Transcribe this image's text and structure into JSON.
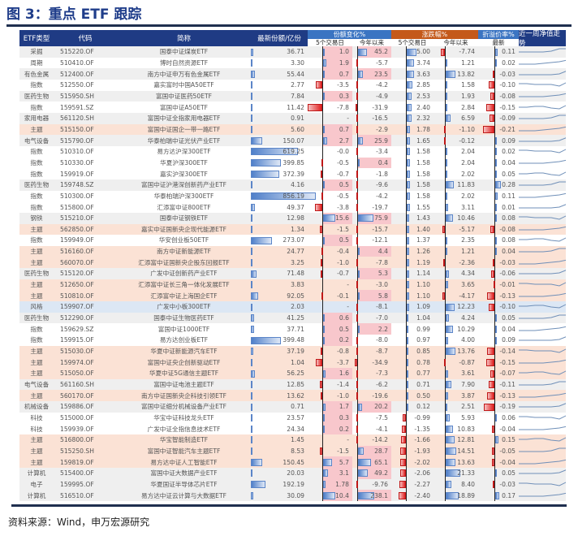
{
  "title": "图 3：重点 ETF 跟踪",
  "source": "资料来源：Wind，申万宏源研究",
  "colors": {
    "header": "#1f3b84",
    "group_share": "#3a74c2",
    "group_return": "#c4591a",
    "group_premium": "#3a74c2",
    "row_grey": "#efefef",
    "row_orange": "#fbe2d5",
    "row_blue": "#dce7f4",
    "row_white": "#ffffff",
    "bar_positive": "#4f7fc9",
    "bar_negative": "#e02020",
    "highlight_pink": "#f8c7cc"
  },
  "header": {
    "type": "ETF类型",
    "code": "代码",
    "name": "简称",
    "shares": "最新份额/亿份",
    "share_change": "份额变化%",
    "return": "涨跌幅%",
    "premium": "折溢价率%",
    "trend": "近一周净值走势",
    "d5": "5个交易日",
    "ytd": "今年以来",
    "d5b": "5个交易日",
    "ytdb": "今年以来",
    "latest": "最新"
  },
  "rows": [
    {
      "type": "采掘",
      "code": "515220.OF",
      "name": "国泰中证煤炭ETF",
      "shares": "36.71",
      "c5": "1.0",
      "cy": "45.2",
      "r5": "5.00",
      "ry": "-7.74",
      "pr": "0.11",
      "bg": "grey"
    },
    {
      "type": "周期",
      "code": "510410.OF",
      "name": "博时自然资源ETF",
      "shares": "3.30",
      "c5": "1.9",
      "cy": "-5.7",
      "r5": "3.74",
      "ry": "1.21",
      "pr": "0.02",
      "bg": "white"
    },
    {
      "type": "有色金属",
      "code": "512400.OF",
      "name": "南方中证申万有色金属ETF",
      "shares": "55.44",
      "c5": "0.7",
      "cy": "23.5",
      "r5": "3.63",
      "ry": "13.82",
      "pr": "-0.03",
      "bg": "grey"
    },
    {
      "type": "指数",
      "code": "512550.OF",
      "name": "嘉实富时中国A50ETF",
      "shares": "2.77",
      "c5": "-3.5",
      "cy": "-4.2",
      "r5": "2.85",
      "ry": "1.58",
      "pr": "-0.10",
      "bg": "white"
    },
    {
      "type": "医药生物",
      "code": "515950.SH",
      "name": "富国中证医药50ETF",
      "shares": "7.84",
      "c5": "0.3",
      "cy": "-4.9",
      "r5": "2.53",
      "ry": "1.93",
      "pr": "-0.08",
      "bg": "grey"
    },
    {
      "type": "指数",
      "code": "159591.SZ",
      "name": "富国中证A50ETF",
      "shares": "11.42",
      "c5": "-7.8",
      "cy": "-31.9",
      "r5": "2.40",
      "ry": "2.84",
      "pr": "-0.15",
      "bg": "white"
    },
    {
      "type": "家用电器",
      "code": "561120.SH",
      "name": "富国中证全指家用电器ETF",
      "shares": "0.91",
      "c5": "-",
      "cy": "-16.5",
      "r5": "2.32",
      "ry": "6.59",
      "pr": "-0.09",
      "bg": "grey"
    },
    {
      "type": "主题",
      "code": "515150.OF",
      "name": "富国中证国企一带一路ETF",
      "shares": "5.60",
      "c5": "0.7",
      "cy": "-2.9",
      "r5": "1.78",
      "ry": "-1.10",
      "pr": "-0.21",
      "bg": "orange"
    },
    {
      "type": "电气设备",
      "code": "515790.OF",
      "name": "华泰柏瑞中证光伏产业ETF",
      "shares": "150.07",
      "c5": "2.7",
      "cy": "25.9",
      "r5": "1.65",
      "ry": "-0.12",
      "pr": "0.09",
      "bg": "grey"
    },
    {
      "type": "指数",
      "code": "510310.OF",
      "name": "易方达沪深300ETF",
      "shares": "619.25",
      "c5": "-0.0",
      "cy": "-3.4",
      "r5": "1.58",
      "ry": "2.04",
      "pr": "0.02",
      "bg": "white"
    },
    {
      "type": "指数",
      "code": "510330.OF",
      "name": "华夏沪深300ETF",
      "shares": "399.85",
      "c5": "-0.5",
      "cy": "0.4",
      "r5": "1.58",
      "ry": "2.04",
      "pr": "0.04",
      "bg": "white"
    },
    {
      "type": "指数",
      "code": "159919.OF",
      "name": "嘉实沪深300ETF",
      "shares": "372.39",
      "c5": "-0.7",
      "cy": "-1.8",
      "r5": "1.58",
      "ry": "2.02",
      "pr": "0.05",
      "bg": "white"
    },
    {
      "type": "医药生物",
      "code": "159748.SZ",
      "name": "富国中证沪港深创新药产业ETF",
      "shares": "4.16",
      "c5": "0.5",
      "cy": "-9.6",
      "r5": "1.58",
      "ry": "11.83",
      "pr": "0.28",
      "bg": "grey"
    },
    {
      "type": "指数",
      "code": "510300.OF",
      "name": "华泰柏瑞沪深300ETF",
      "shares": "856.19",
      "c5": "-0.5",
      "cy": "-4.2",
      "r5": "1.58",
      "ry": "2.02",
      "pr": "0.11",
      "bg": "white"
    },
    {
      "type": "指数",
      "code": "515800.OF",
      "name": "汇添富中证800ETF",
      "shares": "49.37",
      "c5": "-3.8",
      "cy": "-19.7",
      "r5": "1.55",
      "ry": "3.11",
      "pr": "0.01",
      "bg": "white"
    },
    {
      "type": "钢铁",
      "code": "515210.OF",
      "name": "国泰中证钢铁ETF",
      "shares": "12.98",
      "c5": "15.6",
      "cy": "75.9",
      "r5": "1.43",
      "ry": "10.46",
      "pr": "0.08",
      "bg": "grey"
    },
    {
      "type": "主题",
      "code": "562850.OF",
      "name": "嘉实中证国新央企现代能源ETF",
      "shares": "1.34",
      "c5": "-1.5",
      "cy": "-15.7",
      "r5": "1.40",
      "ry": "-5.17",
      "pr": "-0.08",
      "bg": "orange"
    },
    {
      "type": "指数",
      "code": "159949.OF",
      "name": "华安创业板50ETF",
      "shares": "273.07",
      "c5": "0.5",
      "cy": "-12.1",
      "r5": "1.37",
      "ry": "2.35",
      "pr": "0.08",
      "bg": "white"
    },
    {
      "type": "主题",
      "code": "516160.OF",
      "name": "南方中证新能源ETF",
      "shares": "24.77",
      "c5": "-0.4",
      "cy": "4.4",
      "r5": "1.26",
      "ry": "1.21",
      "pr": "0.04",
      "bg": "orange"
    },
    {
      "type": "主题",
      "code": "560070.OF",
      "name": "汇添富中证国新央企股东回报ETF",
      "shares": "3.25",
      "c5": "-1.0",
      "cy": "-7.8",
      "r5": "1.19",
      "ry": "-2.36",
      "pr": "-0.03",
      "bg": "orange"
    },
    {
      "type": "医药生物",
      "code": "515120.OF",
      "name": "广发中证创新药产业ETF",
      "shares": "71.48",
      "c5": "-0.7",
      "cy": "5.3",
      "r5": "1.14",
      "ry": "4.34",
      "pr": "-0.06",
      "bg": "grey"
    },
    {
      "type": "主题",
      "code": "512650.OF",
      "name": "汇添富中证长三角一体化发展ETF",
      "shares": "3.83",
      "c5": "-",
      "cy": "-3.0",
      "r5": "1.10",
      "ry": "3.65",
      "pr": "-0.01",
      "bg": "orange"
    },
    {
      "type": "主题",
      "code": "510810.OF",
      "name": "汇添富中证上海国企ETF",
      "shares": "92.05",
      "c5": "-0.1",
      "cy": "5.8",
      "r5": "1.10",
      "ry": "-4.17",
      "pr": "-0.13",
      "bg": "orange"
    },
    {
      "type": "风格",
      "code": "159907.OF",
      "name": "广发中小板300ETF",
      "shares": "2.03",
      "c5": "-",
      "cy": "-8.1",
      "r5": "1.09",
      "ry": "12.23",
      "pr": "-0.10",
      "bg": "blue"
    },
    {
      "type": "医药生物",
      "code": "512290.OF",
      "name": "国泰中证生物医药ETF",
      "shares": "41.25",
      "c5": "0.6",
      "cy": "-7.0",
      "r5": "1.04",
      "ry": "4.24",
      "pr": "0.05",
      "bg": "grey"
    },
    {
      "type": "指数",
      "code": "159629.SZ",
      "name": "富国中证1000ETF",
      "shares": "37.71",
      "c5": "0.5",
      "cy": "2.2",
      "r5": "0.99",
      "ry": "10.29",
      "pr": "0.04",
      "bg": "white"
    },
    {
      "type": "指数",
      "code": "159915.OF",
      "name": "易方达创业板ETF",
      "shares": "399.48",
      "c5": "0.2",
      "cy": "-8.0",
      "r5": "0.97",
      "ry": "4.00",
      "pr": "0.09",
      "bg": "white"
    },
    {
      "type": "主题",
      "code": "515030.OF",
      "name": "华夏中证新能源汽车ETF",
      "shares": "37.19",
      "c5": "-0.8",
      "cy": "-8.7",
      "r5": "0.85",
      "ry": "13.76",
      "pr": "-0.14",
      "bg": "orange"
    },
    {
      "type": "主题",
      "code": "159974.OF",
      "name": "富国中证央企创新驱动ETF",
      "shares": "1.04",
      "c5": "-3.7",
      "cy": "-34.9",
      "r5": "0.78",
      "ry": "-0.87",
      "pr": "-0.15",
      "bg": "orange"
    },
    {
      "type": "主题",
      "code": "515050.OF",
      "name": "华夏中证5G通信主题ETF",
      "shares": "56.25",
      "c5": "1.6",
      "cy": "-7.3",
      "r5": "0.77",
      "ry": "3.61",
      "pr": "-0.07",
      "bg": "orange"
    },
    {
      "type": "电气设备",
      "code": "561160.SH",
      "name": "富国中证电池主题ETF",
      "shares": "12.85",
      "c5": "-1.4",
      "cy": "-6.2",
      "r5": "0.71",
      "ry": "7.90",
      "pr": "-0.11",
      "bg": "grey"
    },
    {
      "type": "主题",
      "code": "560170.OF",
      "name": "南方中证国新央企科技引领ETF",
      "shares": "13.62",
      "c5": "-1.0",
      "cy": "-19.6",
      "r5": "0.50",
      "ry": "3.87",
      "pr": "-0.13",
      "bg": "orange"
    },
    {
      "type": "机械设备",
      "code": "159886.OF",
      "name": "富国中证细分机械设备产业ETF",
      "shares": "0.71",
      "c5": "1.7",
      "cy": "20.2",
      "r5": "0.12",
      "ry": "2.51",
      "pr": "-0.19",
      "bg": "grey"
    },
    {
      "type": "科技",
      "code": "515000.OF",
      "name": "华宝中证科技龙头ETF",
      "shares": "23.57",
      "c5": "0.3",
      "cy": "-7.5",
      "r5": "-0.99",
      "ry": "5.93",
      "pr": "0.06",
      "bg": "white"
    },
    {
      "type": "科技",
      "code": "159939.OF",
      "name": "广发中证全指信息技术ETF",
      "shares": "24.34",
      "c5": "0.2",
      "cy": "-4.1",
      "r5": "-1.35",
      "ry": "10.83",
      "pr": "-0.04",
      "bg": "white"
    },
    {
      "type": "主题",
      "code": "516800.OF",
      "name": "华宝智能制造ETF",
      "shares": "1.45",
      "c5": "-",
      "cy": "-14.2",
      "r5": "-1.66",
      "ry": "12.81",
      "pr": "0.15",
      "bg": "orange"
    },
    {
      "type": "主题",
      "code": "515250.SH",
      "name": "富国中证智能汽车主题ETF",
      "shares": "8.53",
      "c5": "-1.5",
      "cy": "28.7",
      "r5": "-1.93",
      "ry": "14.51",
      "pr": "-0.05",
      "bg": "orange"
    },
    {
      "type": "主题",
      "code": "159819.OF",
      "name": "易方达中证人工智能ETF",
      "shares": "150.45",
      "c5": "5.7",
      "cy": "65.1",
      "r5": "-2.02",
      "ry": "13.63",
      "pr": "-0.04",
      "bg": "orange"
    },
    {
      "type": "计算机",
      "code": "515400.OF",
      "name": "富国中证大数据产业ETF",
      "shares": "20.03",
      "c5": "3.1",
      "cy": "49.2",
      "r5": "-2.06",
      "ry": "21.33",
      "pr": "0.05",
      "bg": "grey"
    },
    {
      "type": "电子",
      "code": "159995.OF",
      "name": "华夏国证半导体芯片ETF",
      "shares": "192.19",
      "c5": "1.78",
      "cy": "-9.76",
      "r5": "-2.27",
      "ry": "8.40",
      "pr": "-0.03",
      "bg": "grey"
    },
    {
      "type": "计算机",
      "code": "516510.OF",
      "name": "易方达中证云计算与大数据ETF",
      "shares": "30.09",
      "c5": "10.4",
      "cy": "238.1",
      "r5": "-2.40",
      "ry": "18.89",
      "pr": "0.17",
      "bg": "grey"
    }
  ]
}
